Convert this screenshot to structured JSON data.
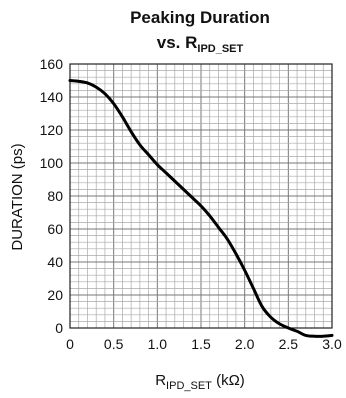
{
  "chart_data": {
    "type": "line",
    "title_line1": "Peaking Duration",
    "title_line2_prefix": "vs. R",
    "title_line2_sub": "IPD_SET",
    "xlabel_prefix": "R",
    "xlabel_sub": "IPD_SET",
    "xlabel_suffix": " (kΩ)",
    "ylabel": "DURATION (ps)",
    "xlim": [
      0,
      3.0
    ],
    "ylim": [
      0,
      160
    ],
    "x_ticks": [
      0,
      0.5,
      1.0,
      1.5,
      2.0,
      2.5,
      3.0
    ],
    "x_tick_labels": [
      "0",
      "0.5",
      "1.0",
      "1.5",
      "2.0",
      "2.5",
      "3.0"
    ],
    "y_ticks": [
      0,
      20,
      40,
      60,
      80,
      100,
      120,
      140,
      160
    ],
    "y_tick_labels": [
      "0",
      "20",
      "40",
      "60",
      "80",
      "100",
      "120",
      "140",
      "160"
    ],
    "grid": true,
    "series": [
      {
        "x": [
          0,
          0.1,
          0.2,
          0.3,
          0.4,
          0.5,
          0.6,
          0.7,
          0.8,
          0.9,
          1.0,
          1.1,
          1.2,
          1.3,
          1.4,
          1.5,
          1.6,
          1.7,
          1.8,
          1.9,
          2.0,
          2.1,
          2.2,
          2.3,
          2.4,
          2.5,
          2.6,
          2.7,
          2.8,
          2.9,
          3.0
        ],
        "y": [
          150,
          149.5,
          148.5,
          146,
          142,
          136,
          128,
          119,
          111,
          105,
          99,
          94,
          89,
          84,
          79,
          74,
          68,
          61,
          54,
          45,
          35,
          24,
          13,
          6.5,
          2.5,
          0,
          -2,
          -4.5,
          -5,
          -5,
          -4.5
        ],
        "color": "#000000"
      }
    ]
  }
}
